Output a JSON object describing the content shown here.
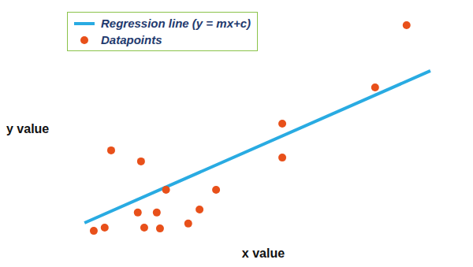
{
  "chart_data": {
    "type": "scatter",
    "x_label": "x value",
    "y_label": "y value",
    "xlim": [
      0,
      100
    ],
    "ylim": [
      0,
      100
    ],
    "xticks": [],
    "yticks": [],
    "tick_labels": false,
    "grid": false,
    "legend": "upper left",
    "series": [
      {
        "name": "Regression line (y = mx+c)",
        "type": "line",
        "color": "#29abe2",
        "x": [
          5.7,
          91.4
        ],
        "values": [
          8.4,
          73.2
        ]
      },
      {
        "name": "Datapoints",
        "type": "scatter",
        "color": "#e8501a",
        "marker": "circle",
        "x": [
          8.0,
          10.7,
          12.3,
          18.9,
          19.7,
          20.5,
          23.6,
          24.4,
          25.9,
          31.4,
          34.2,
          38.3,
          54.7,
          54.7,
          77.7,
          85.5
        ],
        "values": [
          5.0,
          6.4,
          39.3,
          12.8,
          34.6,
          6.4,
          12.8,
          6.0,
          22.5,
          8.1,
          14.1,
          22.5,
          50.7,
          36.2,
          66.1,
          92.6
        ]
      }
    ]
  }
}
